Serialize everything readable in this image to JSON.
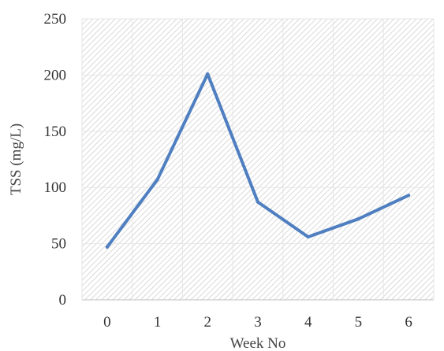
{
  "chart_data": {
    "type": "line",
    "title": "",
    "xlabel": "Week No",
    "ylabel": "TSS (mg/L)",
    "x": [
      0,
      1,
      2,
      3,
      4,
      5,
      6
    ],
    "categories": [
      "0",
      "1",
      "2",
      "3",
      "4",
      "5",
      "6"
    ],
    "ylim": [
      0,
      250
    ],
    "yticks": [
      0,
      50,
      100,
      150,
      200,
      250
    ],
    "grid": true,
    "legend": "none",
    "series": [
      {
        "values": [
          47,
          107,
          201,
          87,
          56,
          72,
          93
        ],
        "color": "#4f7fc0"
      }
    ]
  }
}
